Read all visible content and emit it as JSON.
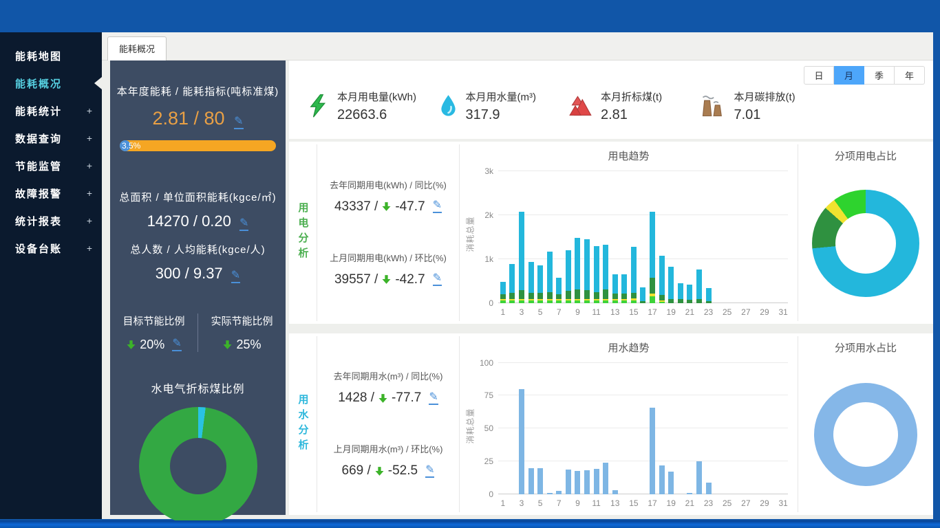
{
  "window": {
    "tab_label": "能耗概况"
  },
  "colors": {
    "accent_blue": "#4da6fa",
    "orange": "#f5a623",
    "number_orange": "#e9a045",
    "pencil_blue": "#4a90d9",
    "arrow_green": "#3cb329",
    "sidebar_bg": "#0b1a2e",
    "panel_bg": "#3d4c63",
    "active_item": "#56cfe0",
    "elec_cyan": "#23b7dc",
    "elec_darkgreen": "#2f9140",
    "elec_yellow": "#f0e32f",
    "elec_lightgreen": "#3ed33a",
    "water_blue": "#7eb6e4"
  },
  "sidebar": {
    "items": [
      {
        "label": "能耗地图",
        "plus": ""
      },
      {
        "label": "能耗概况",
        "plus": ""
      },
      {
        "label": "能耗统计",
        "plus": "+"
      },
      {
        "label": "数据查询",
        "plus": "+"
      },
      {
        "label": "节能监管",
        "plus": "+"
      },
      {
        "label": "故障报警",
        "plus": "+"
      },
      {
        "label": "统计报表",
        "plus": "+"
      },
      {
        "label": "设备台账",
        "plus": "+"
      }
    ]
  },
  "left_panel": {
    "annual_label": "本年度能耗 / 能耗指标(吨标准煤)",
    "annual_value": "2.81 / 80",
    "progress_text": "3.5%",
    "area_label": "总面积 / 单位面积能耗(kgce/㎡)",
    "area_value": "14270 / 0.20",
    "people_label": "总人数 / 人均能耗(kgce/人)",
    "people_value": "300 / 9.37",
    "target_label": "目标节能比例",
    "target_value": "20%",
    "actual_label": "实际节能比例",
    "actual_value": "25%",
    "donut_title": "水电气折标煤比例"
  },
  "stats": {
    "items": [
      {
        "icon": "lightning-icon",
        "label": "本月用电量(kWh)",
        "value": "22663.6"
      },
      {
        "icon": "water-drop-icon",
        "label": "本月用水量(m³)",
        "value": "317.9"
      },
      {
        "icon": "mountain-icon",
        "label": "本月折标煤(t)",
        "value": "2.81"
      },
      {
        "icon": "factory-icon",
        "label": "本月碳排放(t)",
        "value": "7.01"
      }
    ]
  },
  "period": {
    "options": [
      "日",
      "月",
      "季",
      "年"
    ],
    "selected": "月"
  },
  "electricity": {
    "section_label": "用电分析",
    "yoy_label": "去年同期用电(kWh) / 同比(%)",
    "yoy_value": "43337 /",
    "yoy_delta": "-47.7",
    "mom_label": "上月同期用电(kWh) / 环比(%)",
    "mom_value": "39557 /",
    "mom_delta": "-42.7"
  },
  "water": {
    "section_label": "用水分析",
    "yoy_label": "去年同期用水(m³) / 同比(%)",
    "yoy_value": "1428 /",
    "yoy_delta": "-77.7",
    "mom_label": "上月同期用水(m³) / 环比(%)",
    "mom_value": "669 /",
    "mom_delta": "-52.5"
  },
  "chart_data": [
    {
      "type": "bar",
      "stacked": true,
      "title": "用电趋势",
      "ylabel": "消耗总量",
      "x": [
        1,
        2,
        3,
        4,
        5,
        6,
        7,
        8,
        9,
        10,
        11,
        12,
        13,
        14,
        15,
        16,
        17,
        18,
        19,
        20,
        21,
        22,
        23,
        24,
        25,
        26,
        27,
        28,
        29,
        30,
        31
      ],
      "ymax": 3000,
      "yticks": [
        {
          "v": 0,
          "label": "0"
        },
        {
          "v": 1000,
          "label": "1k"
        },
        {
          "v": 2000,
          "label": "2k"
        },
        {
          "v": 3000,
          "label": "3k"
        }
      ],
      "series": [
        {
          "name": "segment-lightgreen",
          "color": "#3ed33a",
          "values": [
            60,
            60,
            60,
            60,
            60,
            60,
            55,
            60,
            60,
            60,
            60,
            60,
            60,
            60,
            60,
            0,
            150,
            30,
            0,
            0,
            0,
            0,
            0,
            0,
            0,
            0,
            0,
            0,
            0,
            0,
            0
          ]
        },
        {
          "name": "segment-yellow",
          "color": "#f0e32f",
          "values": [
            25,
            30,
            30,
            30,
            30,
            30,
            25,
            30,
            30,
            30,
            30,
            30,
            25,
            25,
            35,
            0,
            60,
            25,
            0,
            0,
            0,
            0,
            0,
            0,
            0,
            0,
            0,
            0,
            0,
            0,
            0
          ]
        },
        {
          "name": "segment-darkgreen",
          "color": "#2f9140",
          "values": [
            110,
            130,
            200,
            130,
            130,
            150,
            120,
            190,
            210,
            200,
            150,
            220,
            120,
            120,
            130,
            40,
            370,
            120,
            90,
            80,
            75,
            90,
            40,
            0,
            0,
            0,
            0,
            0,
            0,
            0,
            0
          ]
        },
        {
          "name": "segment-cyan",
          "color": "#23b7dc",
          "values": [
            280,
            660,
            1790,
            710,
            630,
            930,
            370,
            920,
            1180,
            1160,
            1060,
            1010,
            445,
            445,
            1045,
            310,
            1500,
            895,
            730,
            370,
            335,
            670,
            300,
            0,
            0,
            0,
            0,
            0,
            0,
            0,
            0
          ]
        }
      ]
    },
    {
      "type": "bar",
      "stacked": false,
      "title": "用水趋势",
      "ylabel": "消耗总量",
      "x": [
        1,
        2,
        3,
        4,
        5,
        6,
        7,
        8,
        9,
        10,
        11,
        12,
        13,
        14,
        15,
        16,
        17,
        18,
        19,
        20,
        21,
        22,
        23,
        24,
        25,
        26,
        27,
        28,
        29,
        30,
        31
      ],
      "ymax": 100,
      "yticks": [
        {
          "v": 0,
          "label": "0"
        },
        {
          "v": 25,
          "label": "25"
        },
        {
          "v": 50,
          "label": "50"
        },
        {
          "v": 75,
          "label": "75"
        },
        {
          "v": 100,
          "label": "100"
        }
      ],
      "series": [
        {
          "name": "water-usage",
          "color": "#7eb6e4",
          "values": [
            0,
            0,
            80,
            20,
            20,
            1,
            2.5,
            19,
            18,
            18.5,
            19.5,
            24,
            3,
            0,
            0,
            0,
            66,
            22,
            17.5,
            0,
            1,
            25,
            9,
            0,
            0,
            0,
            0,
            0,
            0,
            0,
            0
          ]
        }
      ]
    },
    {
      "type": "donut",
      "title": "分项用电占比",
      "size": 156,
      "hole": 88,
      "hole_color": "#ffffff",
      "slices": [
        {
          "name": "slice-cyan",
          "value": 73.5,
          "color": "#23b7dc"
        },
        {
          "name": "slice-darkgreen",
          "value": 13,
          "color": "#2f9140"
        },
        {
          "name": "slice-yellow",
          "value": 3.5,
          "color": "#f0e32f"
        },
        {
          "name": "slice-lightgreen",
          "value": 10,
          "color": "#2ed32e"
        }
      ]
    },
    {
      "type": "donut",
      "title": "分项用水占比",
      "size": 150,
      "hole": 94,
      "hole_color": "#ffffff",
      "slices": [
        {
          "name": "slice-water",
          "value": 100,
          "color": "#85b7e8"
        }
      ]
    },
    {
      "type": "donut",
      "title": "水电气折标煤比例",
      "size": 172,
      "hole": 82,
      "hole_color": "#3d4c63",
      "slices": [
        {
          "name": "slice-water",
          "value": 2,
          "color": "#29c2e2"
        },
        {
          "name": "slice-electricity",
          "value": 98,
          "color": "#33a843"
        }
      ]
    }
  ]
}
